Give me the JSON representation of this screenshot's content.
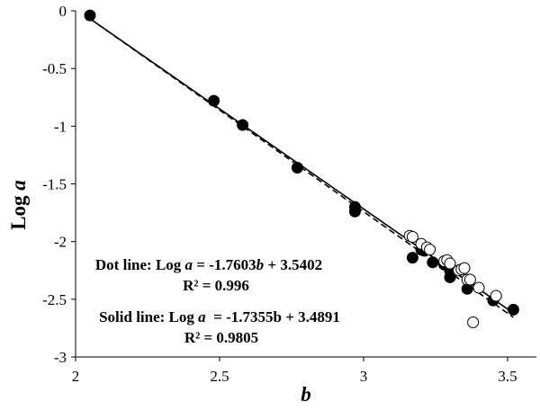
{
  "chart_data": {
    "type": "scatter",
    "xlabel": "b",
    "ylabel_prefix": "Log ",
    "ylabel_var": "a",
    "xlim": [
      2,
      3.6
    ],
    "ylim": [
      -3,
      0
    ],
    "xticks": [
      "2",
      "2.5",
      "3",
      "3.5"
    ],
    "yticks": [
      "0",
      "-0.5",
      "-1",
      "-1.5",
      "-2",
      "-2.5",
      "-3"
    ],
    "series": [
      {
        "marker": "filled-circle",
        "color": "#000000",
        "points": [
          [
            2.05,
            -0.04
          ],
          [
            2.48,
            -0.78
          ],
          [
            2.58,
            -0.99
          ],
          [
            2.77,
            -1.36
          ],
          [
            2.97,
            -1.7
          ],
          [
            2.97,
            -1.74
          ],
          [
            3.17,
            -2.14
          ],
          [
            3.2,
            -2.07
          ],
          [
            3.21,
            -2.08
          ],
          [
            3.24,
            -2.18
          ],
          [
            3.28,
            -2.2
          ],
          [
            3.29,
            -2.19
          ],
          [
            3.3,
            -2.25
          ],
          [
            3.3,
            -2.31
          ],
          [
            3.36,
            -2.41
          ],
          [
            3.45,
            -2.51
          ],
          [
            3.52,
            -2.59
          ]
        ]
      },
      {
        "marker": "open-circle",
        "color": "#000000",
        "points": [
          [
            3.16,
            -1.95
          ],
          [
            3.17,
            -1.96
          ],
          [
            3.2,
            -2.02
          ],
          [
            3.22,
            -2.05
          ],
          [
            3.23,
            -2.07
          ],
          [
            3.28,
            -2.17
          ],
          [
            3.29,
            -2.16
          ],
          [
            3.3,
            -2.19
          ],
          [
            3.33,
            -2.25
          ],
          [
            3.34,
            -2.24
          ],
          [
            3.35,
            -2.23
          ],
          [
            3.36,
            -2.33
          ],
          [
            3.37,
            -2.33
          ],
          [
            3.4,
            -2.4
          ],
          [
            3.46,
            -2.47
          ],
          [
            3.38,
            -2.7
          ]
        ]
      }
    ],
    "fit_lines": [
      {
        "style": "dotted",
        "slope": -1.7603,
        "intercept": 3.5402,
        "x_range": [
          2.05,
          3.52
        ]
      },
      {
        "style": "solid",
        "slope": -1.7355,
        "intercept": 3.4891,
        "x_range": [
          2.05,
          3.52
        ]
      }
    ],
    "annotations": {
      "dot_line_prefix": "Dot line: Log ",
      "dot_line_var": "a",
      "dot_line_eq_mid": " = -1.7603",
      "dot_line_var_b": "b",
      "dot_line_eq_end": " + 3.5402",
      "dot_r2": "R² = 0.996",
      "solid_line_prefix": "Solid line: Log ",
      "solid_line_var": "a",
      "solid_line_eq": "  = -1.7355b + 3.4891",
      "solid_r2": "R² = 0.9805"
    }
  }
}
